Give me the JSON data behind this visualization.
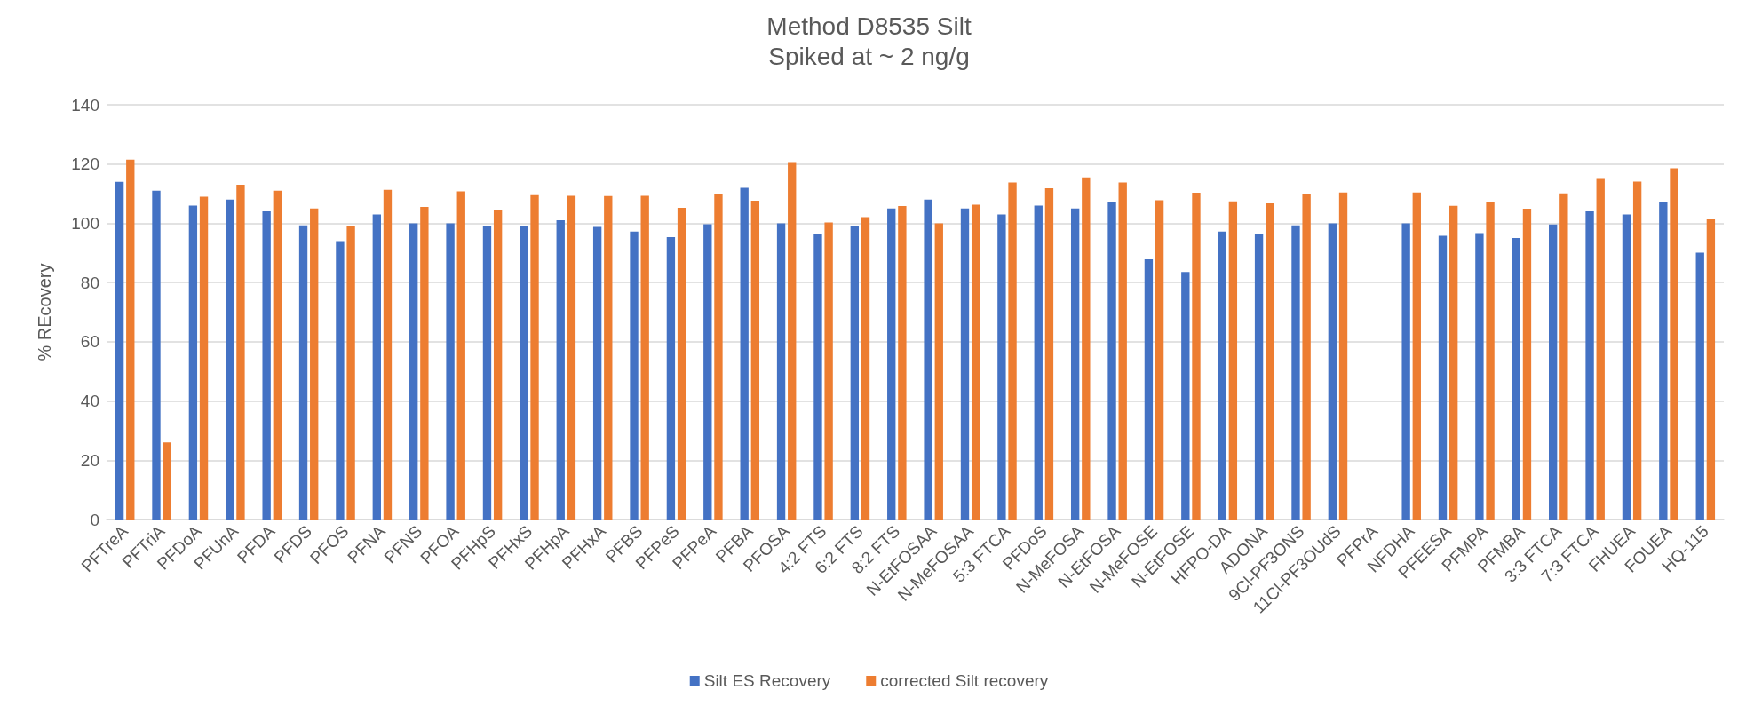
{
  "chart_data": {
    "type": "bar",
    "title": "Method D8535 Silt",
    "subtitle": "Spiked at ~ 2 ng/g",
    "ylabel": "% REcovery",
    "categories": [
      "PFTreA",
      "PFTriA",
      "PFDoA",
      "PFUnA",
      "PFDA",
      "PFDS",
      "PFOS",
      "PFNA",
      "PFNS",
      "PFOA",
      "PFHpS",
      "PFHxS",
      "PFHpA",
      "PFHxA",
      "PFBS",
      "PFPeS",
      "PFPeA",
      "PFBA",
      "PFOSA",
      "4:2 FTS",
      "6:2 FTS",
      "8:2 FTS",
      "N-EtFOSAA",
      "N-MeFOSAA",
      "5:3 FTCA",
      "PFDoS",
      "N-MeFOSA",
      "N-EtFOSA",
      "N-MeFOSE",
      "N-EtFOSE",
      "HFPO-DA",
      "ADONA",
      "9Cl-PF3ONS",
      "11Cl-PF3OUdS",
      "PFPrA",
      "NFDHA",
      "PFEESA",
      "PFMPA",
      "PFMBA",
      "3:3 FTCA",
      "7:3 FTCA",
      "FHUEA",
      "FOUEA",
      "HQ-115"
    ],
    "series": [
      {
        "name": "Silt ES Recovery",
        "color": "#4472c4",
        "values": [
          114,
          111,
          106,
          108,
          104,
          99.3,
          94,
          103,
          100,
          100,
          99,
          99.2,
          101,
          98.8,
          97.2,
          95.3,
          99.7,
          112,
          100,
          96.2,
          99.1,
          105,
          108,
          105,
          103,
          106,
          105,
          107,
          87.8,
          83.6,
          97.2,
          96.5,
          99.3,
          100,
          null,
          100,
          95.8,
          96.7,
          95,
          99.6,
          104,
          103,
          107,
          90.1
        ]
      },
      {
        "name": "corrected Silt recovery",
        "color": "#ed7d31",
        "values": [
          121.5,
          26,
          109,
          113,
          111,
          105,
          99,
          111.3,
          105.5,
          110.8,
          104.5,
          109.5,
          109.3,
          109.2,
          109.3,
          105.2,
          110,
          107.6,
          120.7,
          100.3,
          102.1,
          105.8,
          100,
          106.3,
          113.8,
          111.8,
          115.5,
          113.8,
          107.8,
          110.3,
          107.4,
          106.7,
          109.8,
          110.4,
          null,
          110.4,
          105.9,
          107,
          104.9,
          110.1,
          115,
          114.1,
          118.6,
          101.3
        ]
      }
    ],
    "ylim": [
      0,
      140
    ],
    "yticks": [
      0,
      20,
      40,
      60,
      80,
      100,
      120,
      140
    ],
    "grid": "y",
    "legend": "bottom"
  }
}
